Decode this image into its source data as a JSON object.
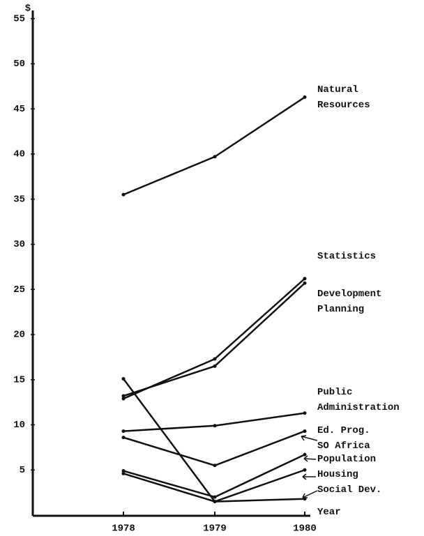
{
  "chart_data": {
    "type": "line",
    "y_label": "$",
    "x_label": "Year",
    "categories": [
      "1978",
      "1979",
      "1980"
    ],
    "series": [
      {
        "name": "Natural\nResources",
        "color": "#111111",
        "values": [
          35.5,
          39.7,
          46.3
        ]
      },
      {
        "name": "Statistics",
        "color": "#111111",
        "values": [
          12.9,
          17.3,
          26.2
        ]
      },
      {
        "name": "Development\nPlanning",
        "color": "#111111",
        "values": [
          13.2,
          16.5,
          25.7
        ]
      },
      {
        "name": "Public\nAdministration",
        "color": "#111111",
        "values": [
          9.3,
          9.9,
          11.3
        ]
      },
      {
        "name": "Ed. Prog.\nSO Africa",
        "color": "#111111",
        "values": [
          8.6,
          5.5,
          9.3
        ]
      },
      {
        "name": "Population",
        "color": "#111111",
        "values": [
          4.9,
          2.0,
          6.7
        ]
      },
      {
        "name": "Housing",
        "color": "#111111",
        "values": [
          4.6,
          1.5,
          5.0
        ]
      },
      {
        "name": "Social Dev.",
        "color": "#111111",
        "values": [
          15.1,
          1.5,
          1.8
        ]
      }
    ],
    "ylim": [
      0,
      57
    ],
    "yticks": [
      5,
      10,
      15,
      20,
      25,
      30,
      35,
      40,
      45,
      50,
      55
    ]
  }
}
